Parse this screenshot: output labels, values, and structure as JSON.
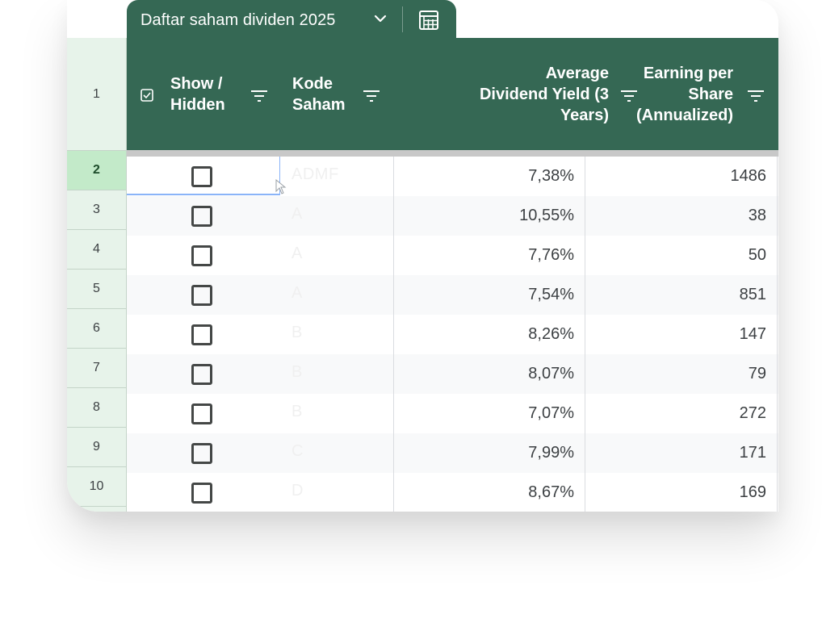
{
  "tab": {
    "title": "Daftar saham dividen 2025",
    "chevron_icon": "chevron-down-icon",
    "table_icon": "table-view-icon"
  },
  "header": {
    "row_number": "1",
    "columns": [
      {
        "label": "Show / Hidden",
        "lines": [
          "Show /",
          "Hidden"
        ],
        "icon": "checkbox-icon"
      },
      {
        "label": "Kode Saham",
        "lines": [
          "Kode",
          "Saham"
        ]
      },
      {
        "label": "Average Dividend Yield (3 Years)",
        "lines": [
          "Average",
          "Dividend Yield (3",
          "Years)"
        ]
      },
      {
        "label": "Earning per Share (Annualized)",
        "lines": [
          "Earning per",
          "Share",
          "(Annualized)"
        ]
      }
    ],
    "filter_icon": "filter-icon"
  },
  "rows": [
    {
      "num": "2",
      "checked": false,
      "kode": "ADMF",
      "yield": "7,38%",
      "eps": "1486"
    },
    {
      "num": "3",
      "checked": false,
      "kode": "A",
      "yield": "10,55%",
      "eps": "38"
    },
    {
      "num": "4",
      "checked": false,
      "kode": "A",
      "yield": "7,76%",
      "eps": "50"
    },
    {
      "num": "5",
      "checked": false,
      "kode": "A",
      "yield": "7,54%",
      "eps": "851"
    },
    {
      "num": "6",
      "checked": false,
      "kode": "B",
      "yield": "8,26%",
      "eps": "147"
    },
    {
      "num": "7",
      "checked": false,
      "kode": "B",
      "yield": "8,07%",
      "eps": "79"
    },
    {
      "num": "8",
      "checked": false,
      "kode": "B",
      "yield": "7,07%",
      "eps": "272"
    },
    {
      "num": "9",
      "checked": false,
      "kode": "C",
      "yield": "7,99%",
      "eps": "171"
    },
    {
      "num": "10",
      "checked": false,
      "kode": "D",
      "yield": "8,67%",
      "eps": "169"
    }
  ],
  "colors": {
    "header_green": "#356854",
    "rownum_bg": "#e7f3ea",
    "active_rownum_bg": "#c3eac9",
    "selection_blue": "#8ab4f8"
  }
}
